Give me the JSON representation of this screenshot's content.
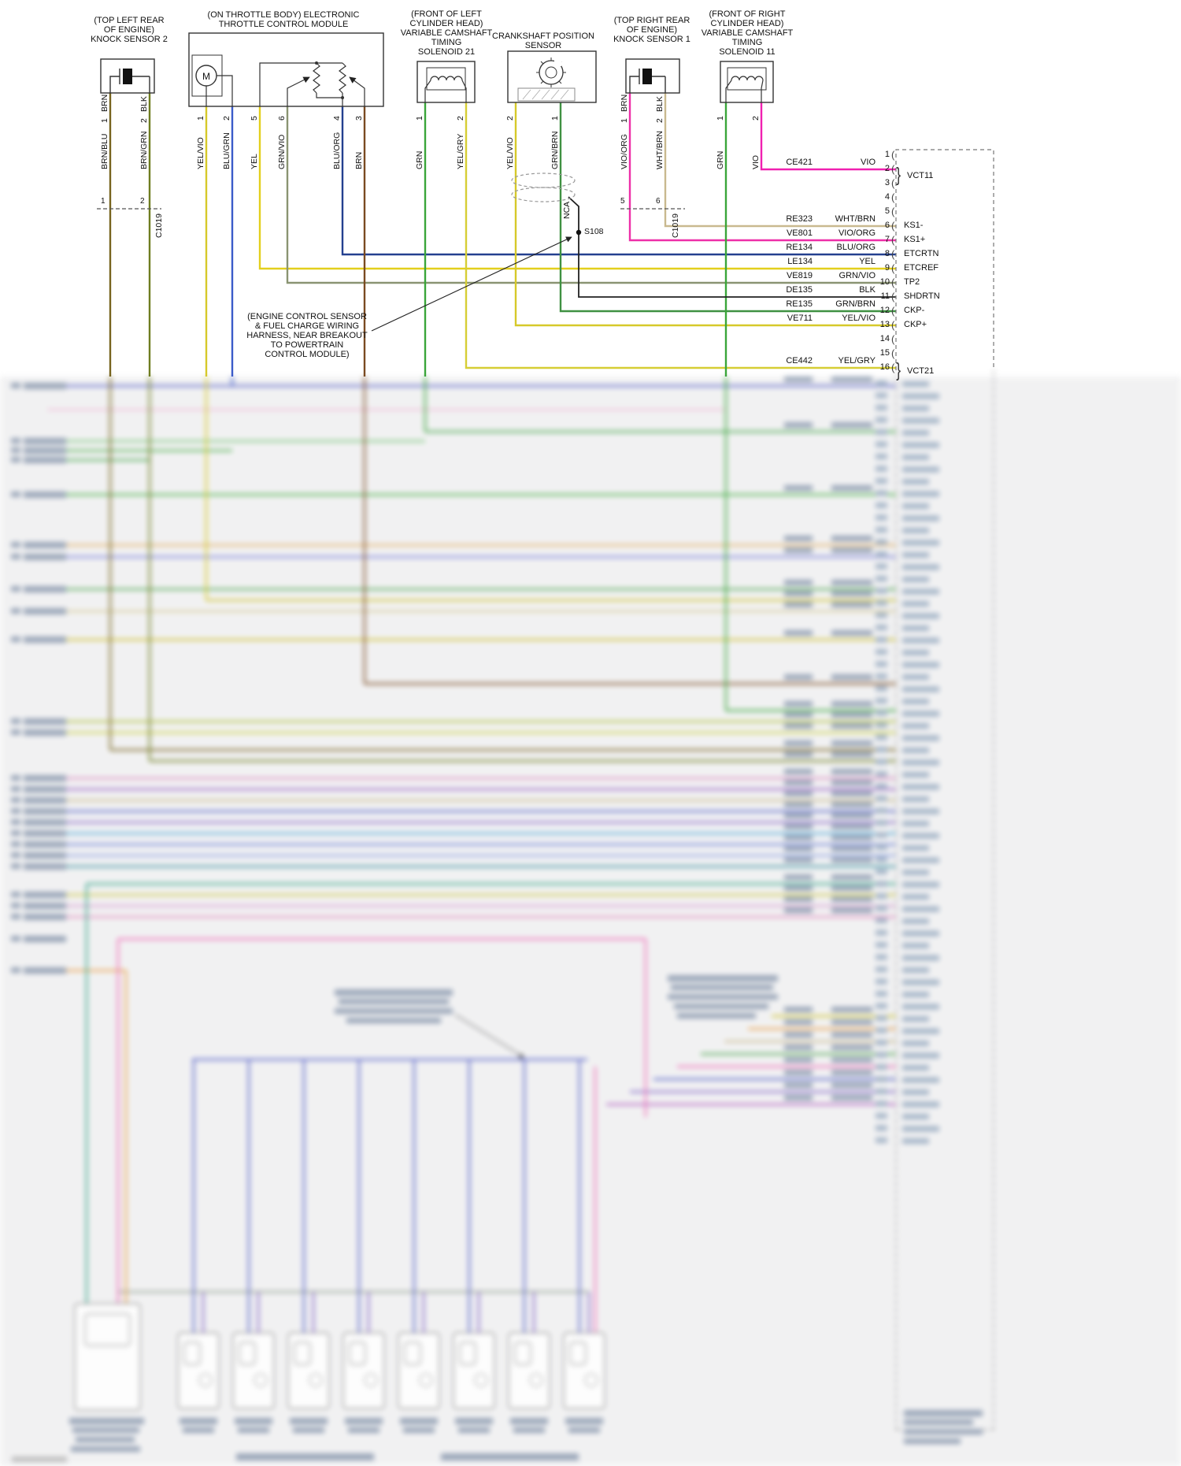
{
  "diagram": {
    "components": {
      "knock2": {
        "loc1": "(TOP LEFT REAR",
        "loc2": "OF ENGINE)",
        "name": "KNOCK SENSOR 2"
      },
      "etc": {
        "line1": "(ON THROTTLE BODY) ELECTRONIC",
        "line2": "THROTTLE CONTROL MODULE",
        "motor": "M"
      },
      "vct21": {
        "line1": "(FRONT OF LEFT",
        "line2": "CYLINDER HEAD)",
        "line3": "VARIABLE CAMSHAFT",
        "line4": "TIMING",
        "line5": "SOLENOID 21"
      },
      "ckp": {
        "line1": "CRANKSHAFT POSITION",
        "line2": "SENSOR"
      },
      "knock1": {
        "loc1": "(TOP RIGHT REAR",
        "loc2": "OF ENGINE)",
        "name": "KNOCK SENSOR 1"
      },
      "vct11": {
        "line1": "(FRONT OF RIGHT",
        "line2": "CYLINDER HEAD)",
        "line3": "VARIABLE CAMSHAFT",
        "line4": "TIMING",
        "line5": "SOLENOID 11"
      }
    },
    "wire_labels": {
      "k2w1": {
        "harness": "BRN/BLU",
        "pin": "1",
        "pigtail": "BRN"
      },
      "k2w2": {
        "harness": "BRN/GRN",
        "pin": "2",
        "pigtail": "BLK"
      },
      "etc1": {
        "color": "YEL/VIO",
        "pin": "1"
      },
      "etc2": {
        "color": "BLU/GRN",
        "pin": "2"
      },
      "etc5": {
        "color": "YEL",
        "pin": "5"
      },
      "etc6": {
        "color": "GRN/VIO",
        "pin": "6"
      },
      "etc4": {
        "color": "BLU/ORG",
        "pin": "4"
      },
      "etc3": {
        "color": "BRN",
        "pin": "3"
      },
      "vct21w1": {
        "color": "GRN",
        "pin": "1"
      },
      "vct21w2": {
        "color": "YEL/GRY",
        "pin": "2"
      },
      "ckpw2": {
        "color": "YEL/VIO",
        "pin": "2"
      },
      "ckpw1": {
        "color": "GRN/BRN",
        "pin": "1"
      },
      "k1w1": {
        "harness": "VIO/ORG",
        "pin": "1",
        "pigtail": "BRN"
      },
      "k1w2": {
        "harness": "WHT/BRN",
        "pin": "2",
        "pigtail": "BLK"
      },
      "vct11w1": {
        "color": "GRN",
        "pin": "1"
      },
      "vct11w2": {
        "color": "VIO",
        "pin": "2"
      }
    },
    "connectors": {
      "c1019_left": {
        "name": "C1019",
        "pin_a": "1",
        "pin_b": "2"
      },
      "c1019_right": {
        "name": "C1019",
        "pin_a": "5",
        "pin_b": "6"
      },
      "s108": "S108",
      "nca": "NCA"
    },
    "note": {
      "line1": "(ENGINE CONTROL SENSOR",
      "line2": "& FUEL CHARGE WIRING",
      "line3": "HARNESS, NEAR BREAKOUT",
      "line4": "TO POWERTRAIN",
      "line5": "CONTROL MODULE)"
    },
    "pcm": {
      "rows": [
        {
          "num": "1",
          "circuit": "",
          "color": "",
          "label": ""
        },
        {
          "num": "2",
          "circuit": "CE421",
          "color": "VIO",
          "label": "VCT11",
          "brace": true
        },
        {
          "num": "3",
          "circuit": "",
          "color": "",
          "label": ""
        },
        {
          "num": "4",
          "circuit": "",
          "color": "",
          "label": ""
        },
        {
          "num": "5",
          "circuit": "",
          "color": "",
          "label": ""
        },
        {
          "num": "6",
          "circuit": "RE323",
          "color": "WHT/BRN",
          "label": "KS1-"
        },
        {
          "num": "7",
          "circuit": "VE801",
          "color": "VIO/ORG",
          "label": "KS1+"
        },
        {
          "num": "8",
          "circuit": "RE134",
          "color": "BLU/ORG",
          "label": "ETCRTN"
        },
        {
          "num": "9",
          "circuit": "LE134",
          "color": "YEL",
          "label": "ETCREF"
        },
        {
          "num": "10",
          "circuit": "VE819",
          "color": "GRN/VIO",
          "label": "TP2"
        },
        {
          "num": "11",
          "circuit": "DE135",
          "color": "BLK",
          "label": "SHDRTN"
        },
        {
          "num": "12",
          "circuit": "RE135",
          "color": "GRN/BRN",
          "label": "CKP-"
        },
        {
          "num": "13",
          "circuit": "VE711",
          "color": "YEL/VIO",
          "label": "CKP+"
        },
        {
          "num": "14",
          "circuit": "",
          "color": "",
          "label": ""
        },
        {
          "num": "15",
          "circuit": "",
          "color": "",
          "label": ""
        },
        {
          "num": "16",
          "circuit": "CE442",
          "color": "YEL/GRY",
          "label": "VCT21",
          "brace": true
        }
      ]
    },
    "wire_colors": {
      "brn_blu": "#77641e",
      "brn_grn": "#6f7d21",
      "yel_vio": "#d6c92a",
      "blu_grn": "#3b5bc9",
      "yel": "#e3cf1d",
      "grn_vio": "#8a9472",
      "blu_org": "#24408f",
      "brn": "#7a4a21",
      "grn": "#3aa53a",
      "yel_gry": "#d6ce35",
      "grn_brn": "#3f9142",
      "vio_org": "#ee2fa8",
      "wht_brn": "#c9b98f",
      "vio": "#f020b0",
      "blk": "#222222"
    }
  }
}
